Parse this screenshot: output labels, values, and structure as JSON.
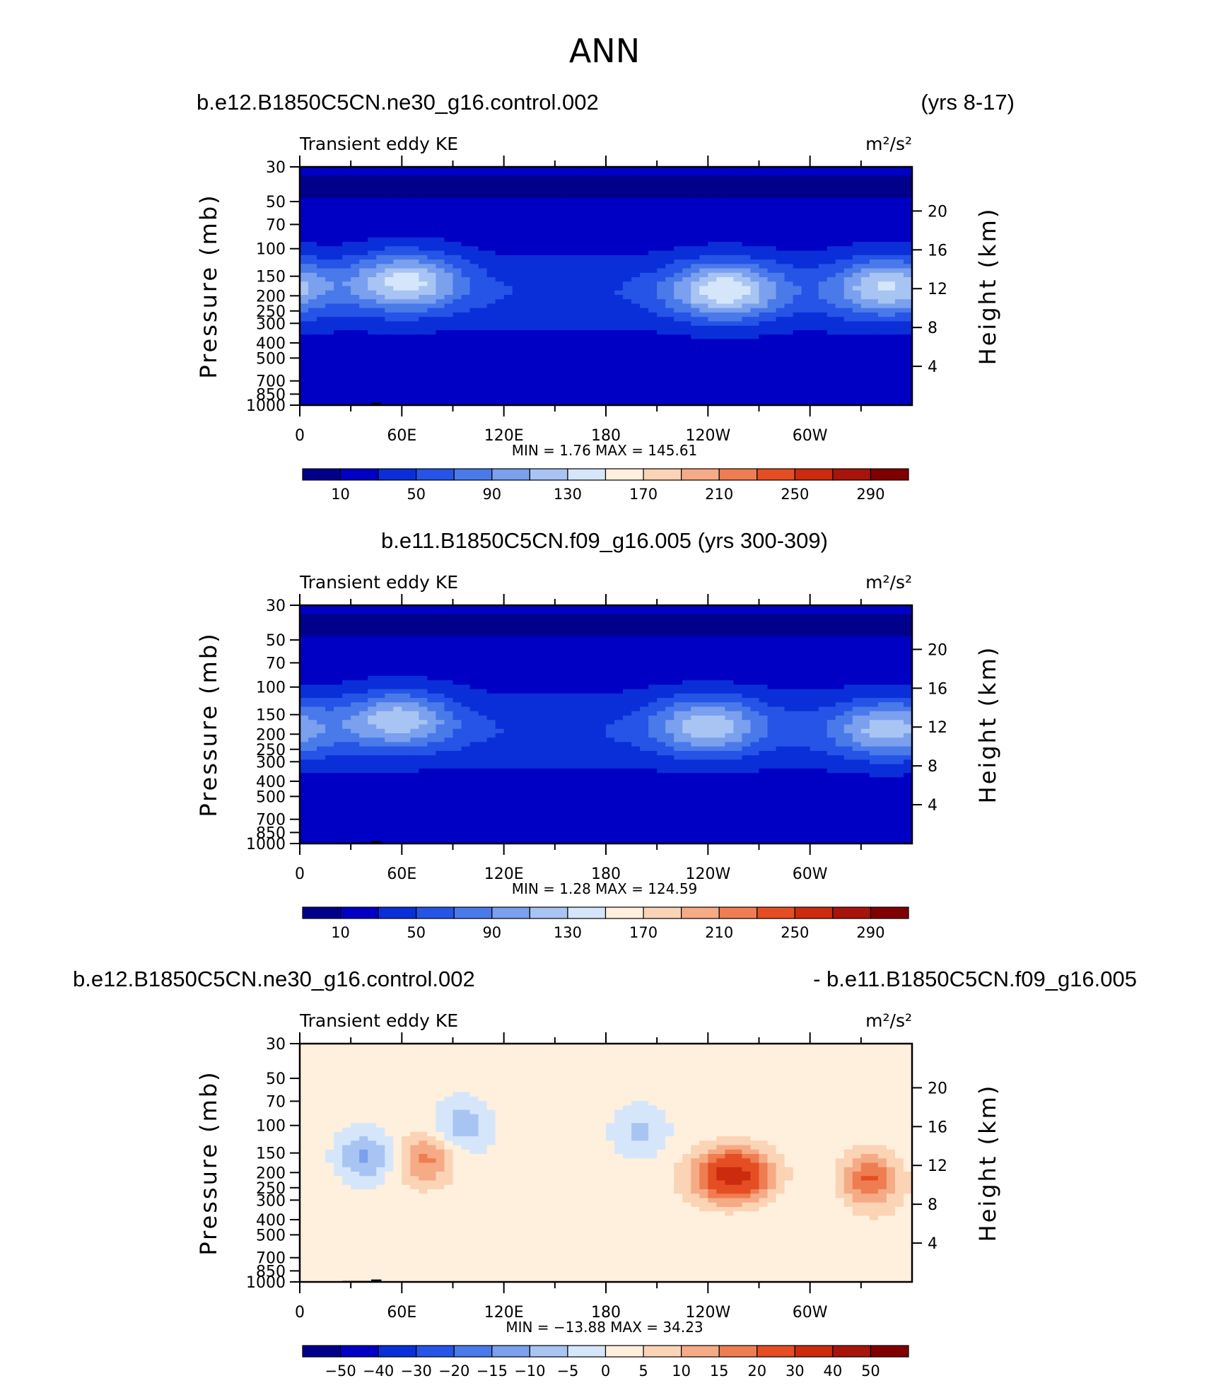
{
  "figure": {
    "title": "ANN",
    "top_header_left": "b.e12.B1850C5CN.ne30_g16.control.002",
    "top_header_right": "(yrs 8-17)",
    "mid_header": "b.e11.B1850C5CN.f09_g16.005 (yrs 300-309)",
    "bot_header_left": "b.e12.B1850C5CN.ne30_g16.control.002",
    "bot_header_right": "- b.e11.B1850C5CN.f09_g16.005"
  },
  "chart_data": [
    {
      "type": "heatmap",
      "subtitle": "Transient eddy KE",
      "units": "m²/s²",
      "xlabel": "",
      "ylabel": "Pressure (mb)",
      "ylabel_right": "Height (km)",
      "xlim": [
        0,
        360
      ],
      "ylim": [
        1000,
        30
      ],
      "x_ticks": [
        "0",
        "60E",
        "120E",
        "180",
        "120W",
        "60W"
      ],
      "y_ticks": [
        "30",
        "50",
        "70",
        "100",
        "150",
        "200",
        "250",
        "300",
        "400",
        "500",
        "700",
        "850",
        "1000"
      ],
      "y_ticks_right": [
        "20",
        "16",
        "12",
        "8",
        "4"
      ],
      "min_label": "MIN =    1.76   MAX =  145.61",
      "min": 1.76,
      "max": 145.61,
      "colorbar_levels": [
        "10",
        "50",
        "90",
        "130",
        "170",
        "210",
        "250",
        "290"
      ],
      "colorbar_colors": [
        "#00008b",
        "#0000c4",
        "#0a2fd8",
        "#2554e6",
        "#4a7ae9",
        "#7aa0ee",
        "#a8c4f2",
        "#d5e6fa",
        "#fff0dd",
        "#fbd3b5",
        "#f5ab86",
        "#ef7d52",
        "#e54e22",
        "#cc2b0e",
        "#a9140a",
        "#800000"
      ],
      "jets": [
        {
          "lon": 62,
          "p": 160,
          "peak": 140
        },
        {
          "lon": 250,
          "p": 185,
          "peak": 145
        },
        {
          "lon": 345,
          "p": 175,
          "peak": 130
        }
      ]
    },
    {
      "type": "heatmap",
      "subtitle": "Transient eddy KE",
      "units": "m²/s²",
      "xlabel": "",
      "ylabel": "Pressure (mb)",
      "ylabel_right": "Height (km)",
      "xlim": [
        0,
        360
      ],
      "ylim": [
        1000,
        30
      ],
      "x_ticks": [
        "0",
        "60E",
        "120E",
        "180",
        "120W",
        "60W"
      ],
      "y_ticks": [
        "30",
        "50",
        "70",
        "100",
        "150",
        "200",
        "250",
        "300",
        "400",
        "500",
        "700",
        "850",
        "1000"
      ],
      "y_ticks_right": [
        "20",
        "16",
        "12",
        "8",
        "4"
      ],
      "min_label": "MIN =    1.28   MAX =  124.59",
      "min": 1.28,
      "max": 124.59,
      "colorbar_levels": [
        "10",
        "50",
        "90",
        "130",
        "170",
        "210",
        "250",
        "290"
      ],
      "colorbar_colors": [
        "#00008b",
        "#0000c4",
        "#0a2fd8",
        "#2554e6",
        "#4a7ae9",
        "#7aa0ee",
        "#a8c4f2",
        "#d5e6fa",
        "#fff0dd",
        "#fbd3b5",
        "#f5ab86",
        "#ef7d52",
        "#e54e22",
        "#cc2b0e",
        "#a9140a",
        "#800000"
      ],
      "jets": [
        {
          "lon": 58,
          "p": 160,
          "peak": 125
        },
        {
          "lon": 240,
          "p": 175,
          "peak": 124
        },
        {
          "lon": 345,
          "p": 185,
          "peak": 118
        }
      ]
    },
    {
      "type": "heatmap",
      "subtitle": "Transient eddy KE",
      "units": "m²/s²",
      "xlabel": "",
      "ylabel": "Pressure (mb)",
      "ylabel_right": "Height (km)",
      "xlim": [
        0,
        360
      ],
      "ylim": [
        1000,
        30
      ],
      "x_ticks": [
        "0",
        "60E",
        "120E",
        "180",
        "120W",
        "60W"
      ],
      "y_ticks": [
        "30",
        "50",
        "70",
        "100",
        "150",
        "200",
        "250",
        "300",
        "400",
        "500",
        "700",
        "850",
        "1000"
      ],
      "y_ticks_right": [
        "20",
        "16",
        "12",
        "8",
        "4"
      ],
      "min_label": "MIN = −13.88   MAX =   34.23",
      "min": -13.88,
      "max": 34.23,
      "colorbar_levels": [
        "−50",
        "−40",
        "−30",
        "−20",
        "−15",
        "−10",
        "−5",
        "0",
        "5",
        "10",
        "15",
        "20",
        "30",
        "40",
        "50"
      ],
      "colorbar_colors": [
        "#00008b",
        "#0000c4",
        "#0a2fd8",
        "#2554e6",
        "#4a7ae9",
        "#7aa0ee",
        "#a8c4f2",
        "#d5e6fa",
        "#fff0dd",
        "#fbd3b5",
        "#f5ab86",
        "#ef7d52",
        "#e54e22",
        "#cc2b0e",
        "#a9140a",
        "#800000"
      ],
      "anomalies": [
        {
          "lon": 255,
          "p": 210,
          "value": 34
        },
        {
          "lon": 335,
          "p": 220,
          "value": 18
        },
        {
          "lon": 75,
          "p": 165,
          "value": 14
        },
        {
          "lon": 38,
          "p": 160,
          "value": -13
        },
        {
          "lon": 95,
          "p": 100,
          "value": -10
        },
        {
          "lon": 200,
          "p": 110,
          "value": -8
        }
      ]
    }
  ]
}
